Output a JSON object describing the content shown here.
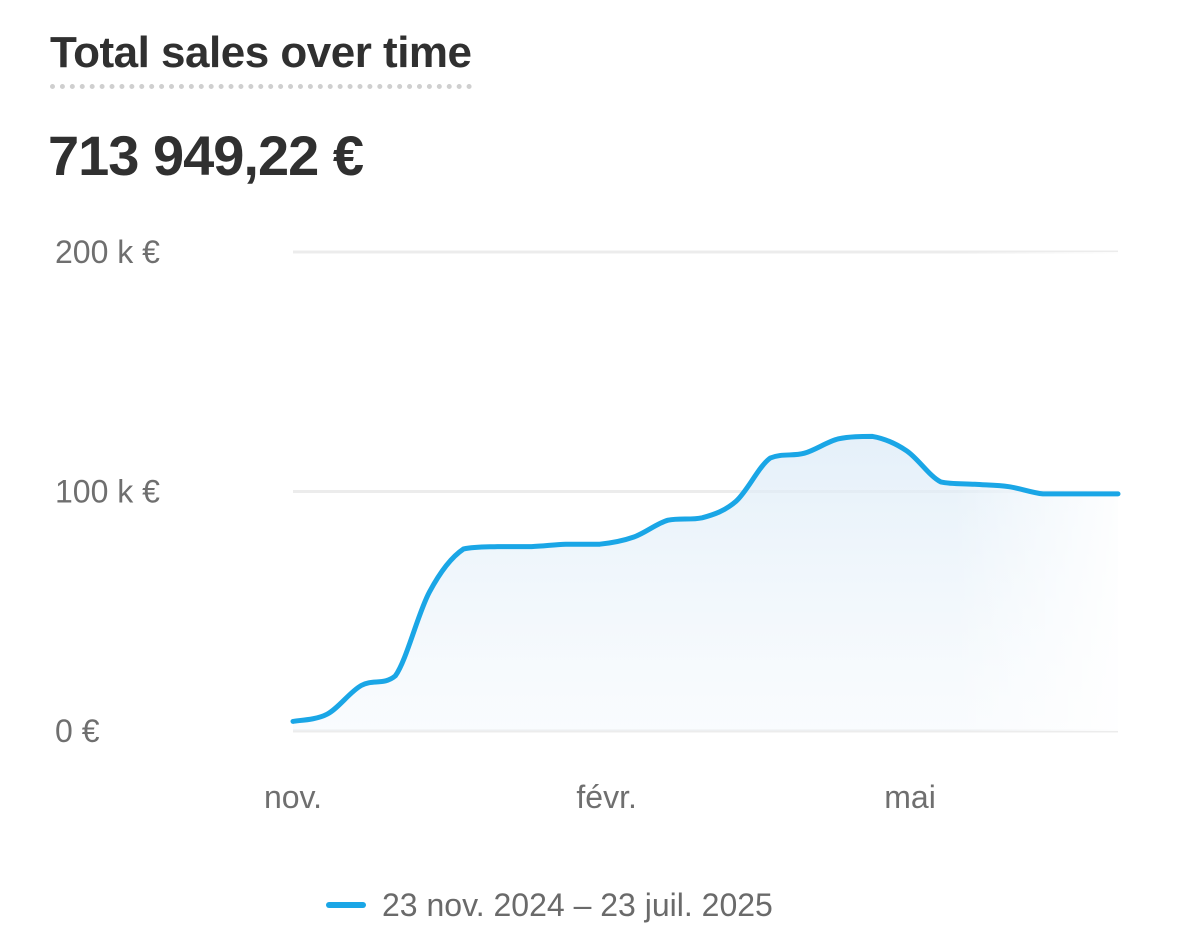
{
  "header": {
    "title": "Total sales over time",
    "total_value": "713 949,22 €"
  },
  "colors": {
    "line": "#1aa6e6",
    "grid": "#ececec",
    "text": "#303030",
    "axis_text": "#6f6f6f"
  },
  "chart_data": {
    "type": "area",
    "title": "Total sales over time",
    "y_ticks": [
      {
        "value": 0,
        "label": "0 €"
      },
      {
        "value": 100000,
        "label": "100 k €"
      },
      {
        "value": 200000,
        "label": "200 k €"
      }
    ],
    "x_ticks": [
      {
        "date": "2024-11-23",
        "label": "nov."
      },
      {
        "date": "2025-02-23",
        "label": "févr."
      },
      {
        "date": "2025-05-23",
        "label": "mai"
      }
    ],
    "ylim": [
      0,
      200000
    ],
    "xlim": [
      "2024-11-23",
      "2025-07-23"
    ],
    "grid": true,
    "legend_position": "bottom-center",
    "series": [
      {
        "name": "23 nov. 2024 – 23 juil. 2025",
        "points": [
          {
            "x": "2024-11-23",
            "y": 4000
          },
          {
            "x": "2024-12-03",
            "y": 7000
          },
          {
            "x": "2024-12-13",
            "y": 19000
          },
          {
            "x": "2024-12-23",
            "y": 23000
          },
          {
            "x": "2025-01-02",
            "y": 58000
          },
          {
            "x": "2025-01-12",
            "y": 76000
          },
          {
            "x": "2025-01-22",
            "y": 77000
          },
          {
            "x": "2025-02-01",
            "y": 77000
          },
          {
            "x": "2025-02-11",
            "y": 78000
          },
          {
            "x": "2025-02-21",
            "y": 78000
          },
          {
            "x": "2025-03-03",
            "y": 81000
          },
          {
            "x": "2025-03-13",
            "y": 88000
          },
          {
            "x": "2025-03-23",
            "y": 89000
          },
          {
            "x": "2025-04-02",
            "y": 96000
          },
          {
            "x": "2025-04-12",
            "y": 114000
          },
          {
            "x": "2025-04-22",
            "y": 116000
          },
          {
            "x": "2025-05-02",
            "y": 122000
          },
          {
            "x": "2025-05-12",
            "y": 123000
          },
          {
            "x": "2025-05-22",
            "y": 117000
          },
          {
            "x": "2025-06-01",
            "y": 104000
          },
          {
            "x": "2025-06-11",
            "y": 103000
          },
          {
            "x": "2025-06-21",
            "y": 102000
          },
          {
            "x": "2025-07-01",
            "y": 99000
          },
          {
            "x": "2025-07-11",
            "y": 99000
          },
          {
            "x": "2025-07-23",
            "y": 99000
          }
        ]
      }
    ]
  }
}
